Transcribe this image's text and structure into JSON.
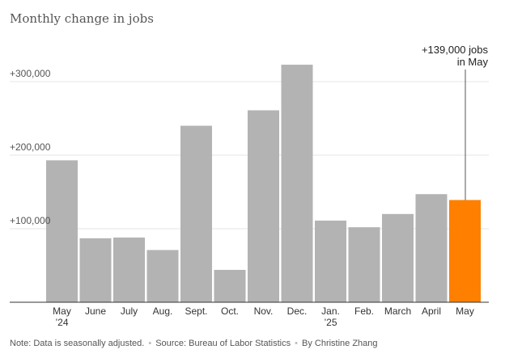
{
  "title": "Monthly change in jobs",
  "chart_data": {
    "type": "bar",
    "title": "Monthly change in jobs",
    "xlabel": "",
    "ylabel": "",
    "ylim": [
      0,
      330000
    ],
    "yticks": [
      100000,
      200000,
      300000
    ],
    "ytick_labels": [
      "+100,000",
      "+200,000",
      "+300,000"
    ],
    "grid": true,
    "categories": [
      "May",
      "June",
      "July",
      "Aug.",
      "Sept.",
      "Oct.",
      "Nov.",
      "Dec.",
      "Jan.",
      "Feb.",
      "March",
      "April",
      "May"
    ],
    "category_sublabels": [
      "’24",
      "",
      "",
      "",
      "",
      "",
      "",
      "",
      "’25",
      "",
      "",
      "",
      ""
    ],
    "values": [
      193000,
      87000,
      88000,
      71000,
      240000,
      44000,
      261000,
      323000,
      111000,
      102000,
      120000,
      147000,
      139000
    ],
    "highlight_index": 12,
    "annotation": {
      "line1": "+139,000 jobs",
      "line2": "in May"
    }
  },
  "colors": {
    "bar": "#b3b3b3",
    "highlight": "#ff7f00",
    "grid": "#e6e6e6",
    "axis": "#333333",
    "text": "#555555"
  },
  "footnote": {
    "note": "Note: Data is seasonally adjusted.",
    "source": "Source: Bureau of Labor Statistics",
    "byline": "By Christine Zhang",
    "separator": "•"
  }
}
